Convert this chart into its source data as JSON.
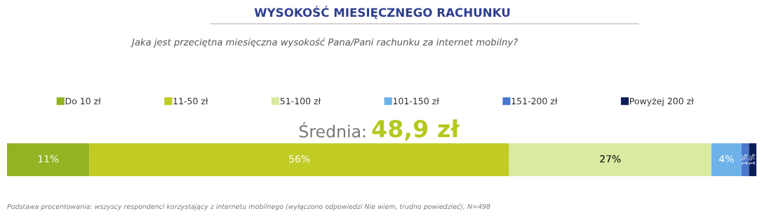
{
  "chart_data": {
    "type": "bar",
    "orientation": "horizontal",
    "stacked": true,
    "legend": "top",
    "tick_labels": false,
    "title": "WYSOKOŚĆ MIESIĘCZNEGO RACHUNKU",
    "subtitle": "Jaka jest przeciętna miesięczna wysokość Pana/Pani rachunku za internet mobilny?",
    "categories": [
      null
    ],
    "series": [
      {
        "name": "Do 10 zł",
        "color": "#92b422",
        "values": [
          11
        ],
        "value_labels": [
          "11%"
        ]
      },
      {
        "name": "11-50 zł",
        "color": "#c0cc24",
        "values": [
          56
        ],
        "value_labels": [
          "56%"
        ]
      },
      {
        "name": "51-100 zł",
        "color": "#daeaa0",
        "values": [
          27
        ],
        "value_labels": [
          "27%"
        ]
      },
      {
        "name": "101-150 zł",
        "color": "#6db3ea",
        "values": [
          4
        ],
        "value_labels": [
          "4%"
        ]
      },
      {
        "name": "151-200 zł",
        "color": "#4a78cc",
        "values": [
          1
        ],
        "value_labels": [
          "1%"
        ]
      },
      {
        "name": "Powyżej 200 zł",
        "color": "#0c1f5c",
        "values": [
          1
        ],
        "value_labels": [
          "1%"
        ]
      }
    ],
    "annotations": [
      "Średnia:",
      "48,9 zł",
      "Podstawa procentowania: wszyscy respondenci korzystający z internetu mobilnego (wyłączono odpowiedzi Nie wiem, trudno powiedzieć), N=498"
    ]
  }
}
